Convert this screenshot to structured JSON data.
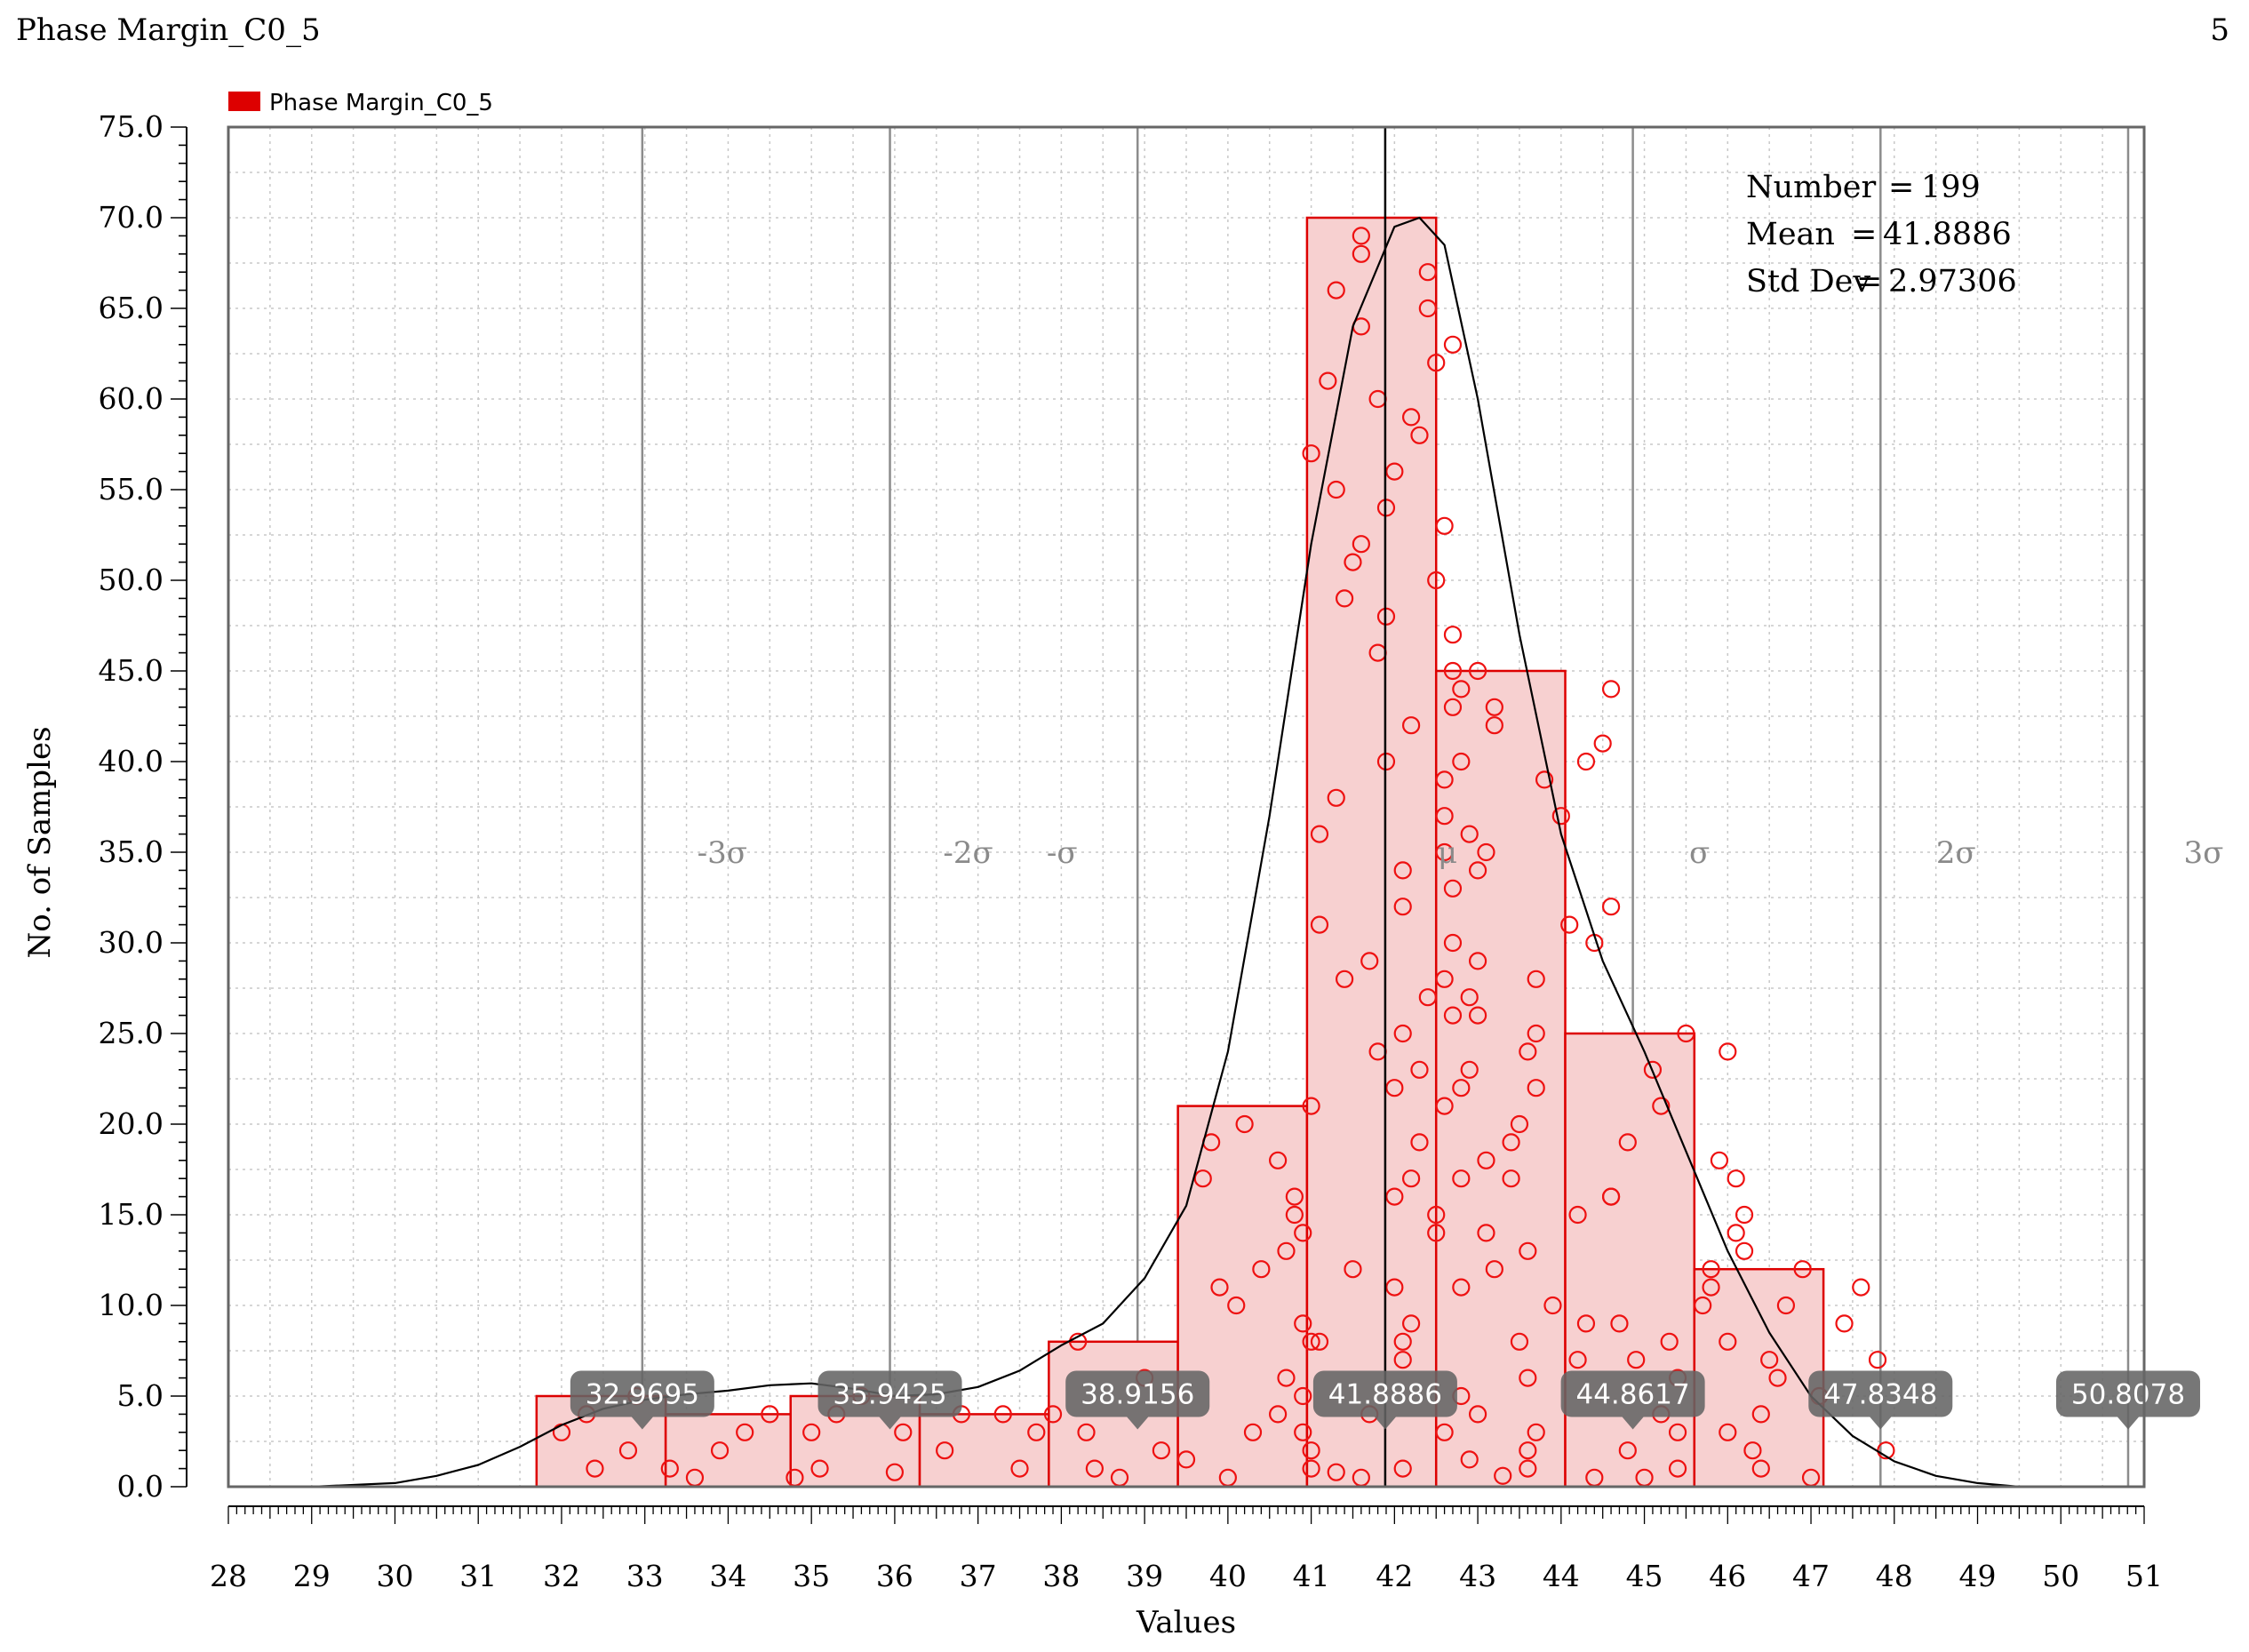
{
  "window": {
    "title": "Phase Margin_C0_5",
    "page_number": "5"
  },
  "chart_data": {
    "type": "bar",
    "title": "",
    "xlabel": "Values",
    "ylabel": "No. of Samples",
    "xlim": [
      28,
      51
    ],
    "ylim": [
      0,
      75
    ],
    "x_ticks": [
      "28",
      "29",
      "30",
      "31",
      "32",
      "33",
      "34",
      "35",
      "36",
      "37",
      "38",
      "39",
      "40",
      "41",
      "42",
      "43",
      "44",
      "45",
      "46",
      "47",
      "48",
      "49",
      "50",
      "51"
    ],
    "y_ticks": [
      "0.0",
      "5.0",
      "10.0",
      "15.0",
      "20.0",
      "25.0",
      "30.0",
      "35.0",
      "40.0",
      "45.0",
      "50.0",
      "55.0",
      "60.0",
      "65.0",
      "70.0",
      "75.0"
    ],
    "grid": true,
    "legend": {
      "position": "top-left",
      "entries": [
        {
          "name": "Phase Margin_C0_5",
          "color": "#dd0000"
        }
      ]
    },
    "series": [
      {
        "name": "Phase Margin_C0_5",
        "bins": [
          {
            "start": 31.7,
            "end": 33.25,
            "count": 5
          },
          {
            "start": 33.25,
            "end": 34.75,
            "count": 4
          },
          {
            "start": 34.75,
            "end": 36.3,
            "count": 5
          },
          {
            "start": 36.3,
            "end": 37.85,
            "count": 4
          },
          {
            "start": 37.85,
            "end": 39.4,
            "count": 8
          },
          {
            "start": 39.4,
            "end": 40.95,
            "count": 21
          },
          {
            "start": 40.95,
            "end": 42.5,
            "count": 70
          },
          {
            "start": 42.5,
            "end": 44.05,
            "count": 45
          },
          {
            "start": 44.05,
            "end": 45.6,
            "count": 25
          },
          {
            "start": 45.6,
            "end": 47.15,
            "count": 12
          }
        ]
      }
    ],
    "density_curve": {
      "x": [
        28,
        29,
        30,
        30.5,
        31,
        31.5,
        32,
        32.5,
        33,
        33.5,
        34,
        34.5,
        35,
        35.5,
        36,
        36.5,
        37,
        37.5,
        38,
        38.5,
        39,
        39.5,
        40,
        40.5,
        41,
        41.5,
        42,
        42.3,
        42.6,
        43,
        43.5,
        44,
        44.5,
        45,
        45.5,
        46,
        46.5,
        47,
        47.5,
        48,
        48.5,
        49,
        49.5,
        50,
        51
      ],
      "y": [
        0,
        0,
        0.2,
        0.6,
        1.2,
        2.2,
        3.4,
        4.3,
        4.8,
        5.1,
        5.3,
        5.6,
        5.7,
        5.4,
        5.0,
        5.1,
        5.5,
        6.4,
        7.8,
        9.0,
        11.5,
        15.5,
        24,
        37,
        52,
        64,
        69.5,
        70,
        68.5,
        60,
        47,
        36,
        29,
        24,
        18.5,
        13,
        8.5,
        5,
        2.8,
        1.4,
        0.6,
        0.2,
        0,
        0,
        0
      ]
    },
    "statistics": {
      "number": "199",
      "mean": "41.8886",
      "std_dev": "2.97306"
    },
    "stats_labels": {
      "number": "Number",
      "mean": "Mean",
      "std_dev": "Std Dev"
    },
    "sigma_markers": [
      {
        "label": "-3σ",
        "value": "32.9695"
      },
      {
        "label": "-2σ",
        "value": "35.9425"
      },
      {
        "label": "-σ",
        "value": "38.9156"
      },
      {
        "label": "μ",
        "value": "41.8886"
      },
      {
        "label": "σ",
        "value": "44.8617"
      },
      {
        "label": "2σ",
        "value": "47.8348"
      },
      {
        "label": "3σ",
        "value": "50.8078"
      }
    ],
    "sample_points": [
      [
        32.0,
        3
      ],
      [
        32.3,
        4
      ],
      [
        32.4,
        1
      ],
      [
        32.8,
        2
      ],
      [
        33.3,
        1
      ],
      [
        33.9,
        2
      ],
      [
        34.2,
        3
      ],
      [
        34.5,
        4
      ],
      [
        35.0,
        3
      ],
      [
        35.1,
        1
      ],
      [
        35.3,
        4
      ],
      [
        35.6,
        5
      ],
      [
        36.1,
        3
      ],
      [
        36.6,
        2
      ],
      [
        36.8,
        4
      ],
      [
        37.5,
        1
      ],
      [
        37.7,
        3
      ],
      [
        37.9,
        4
      ],
      [
        38.2,
        8
      ],
      [
        38.3,
        3
      ],
      [
        38.4,
        1
      ],
      [
        39.2,
        2
      ],
      [
        39.7,
        17
      ],
      [
        39.8,
        19
      ],
      [
        39.9,
        11
      ],
      [
        40.1,
        10
      ],
      [
        40.2,
        20
      ],
      [
        40.4,
        12
      ],
      [
        40.6,
        4
      ],
      [
        40.6,
        18
      ],
      [
        40.7,
        13
      ],
      [
        40.7,
        6
      ],
      [
        40.8,
        16
      ],
      [
        40.8,
        15
      ],
      [
        40.9,
        5
      ],
      [
        40.9,
        3
      ],
      [
        40.9,
        9
      ],
      [
        40.9,
        14
      ],
      [
        41.0,
        21
      ],
      [
        41.0,
        1
      ],
      [
        41.0,
        2
      ],
      [
        41.0,
        8
      ],
      [
        41.1,
        8
      ],
      [
        41.0,
        57
      ],
      [
        41.1,
        36
      ],
      [
        41.1,
        31
      ],
      [
        41.2,
        61
      ],
      [
        41.3,
        55
      ],
      [
        41.3,
        66
      ],
      [
        41.3,
        38
      ],
      [
        41.4,
        28
      ],
      [
        41.4,
        49
      ],
      [
        41.5,
        51
      ],
      [
        41.5,
        12
      ],
      [
        41.6,
        64
      ],
      [
        41.6,
        68
      ],
      [
        41.6,
        52
      ],
      [
        41.6,
        69
      ],
      [
        41.7,
        29
      ],
      [
        41.7,
        4
      ],
      [
        41.8,
        60
      ],
      [
        41.8,
        24
      ],
      [
        41.8,
        46
      ],
      [
        41.9,
        54
      ],
      [
        41.9,
        40
      ],
      [
        41.9,
        48
      ],
      [
        42.0,
        56
      ],
      [
        42.0,
        22
      ],
      [
        42.0,
        16
      ],
      [
        42.0,
        11
      ],
      [
        42.1,
        25
      ],
      [
        42.1,
        34
      ],
      [
        42.1,
        32
      ],
      [
        42.1,
        8
      ],
      [
        42.2,
        59
      ],
      [
        42.2,
        42
      ],
      [
        42.2,
        17
      ],
      [
        42.2,
        9
      ],
      [
        42.1,
        7
      ],
      [
        42.1,
        1
      ],
      [
        42.3,
        23
      ],
      [
        42.3,
        19
      ],
      [
        42.3,
        58
      ],
      [
        42.4,
        65
      ],
      [
        42.4,
        67
      ],
      [
        42.4,
        27
      ],
      [
        42.5,
        62
      ],
      [
        42.5,
        50
      ],
      [
        42.5,
        14
      ],
      [
        42.5,
        15
      ],
      [
        42.6,
        53
      ],
      [
        42.6,
        39
      ],
      [
        42.6,
        37
      ],
      [
        42.6,
        35
      ],
      [
        42.6,
        28
      ],
      [
        42.6,
        21
      ],
      [
        42.6,
        3
      ],
      [
        42.7,
        63
      ],
      [
        42.7,
        47
      ],
      [
        42.7,
        45
      ],
      [
        42.7,
        43
      ],
      [
        42.7,
        33
      ],
      [
        42.7,
        30
      ],
      [
        42.7,
        26
      ],
      [
        42.8,
        44
      ],
      [
        42.8,
        40
      ],
      [
        42.8,
        22
      ],
      [
        42.8,
        17
      ],
      [
        42.8,
        11
      ],
      [
        42.8,
        5
      ],
      [
        42.9,
        36
      ],
      [
        42.9,
        27
      ],
      [
        42.9,
        23
      ],
      [
        43.0,
        45
      ],
      [
        43.0,
        34
      ],
      [
        43.0,
        29
      ],
      [
        43.0,
        26
      ],
      [
        43.0,
        4
      ],
      [
        43.1,
        35
      ],
      [
        43.1,
        18
      ],
      [
        43.1,
        14
      ],
      [
        43.2,
        43
      ],
      [
        43.2,
        42
      ],
      [
        43.2,
        12
      ],
      [
        43.4,
        19
      ],
      [
        43.4,
        17
      ],
      [
        43.5,
        20
      ],
      [
        43.5,
        8
      ],
      [
        43.6,
        1
      ],
      [
        43.6,
        6
      ],
      [
        43.6,
        13
      ],
      [
        43.6,
        24
      ],
      [
        43.7,
        28
      ],
      [
        43.7,
        22
      ],
      [
        43.7,
        25
      ],
      [
        43.6,
        2
      ],
      [
        43.7,
        3
      ],
      [
        43.8,
        39
      ],
      [
        44.0,
        37
      ],
      [
        44.1,
        31
      ],
      [
        44.2,
        15
      ],
      [
        44.2,
        7
      ],
      [
        44.3,
        9
      ],
      [
        44.3,
        40
      ],
      [
        44.4,
        30
      ],
      [
        44.5,
        41
      ],
      [
        44.6,
        16
      ],
      [
        44.6,
        44
      ],
      [
        44.6,
        32
      ],
      [
        44.6,
        16
      ],
      [
        44.7,
        9
      ],
      [
        44.8,
        19
      ],
      [
        44.9,
        7
      ],
      [
        45.1,
        23
      ],
      [
        45.2,
        4
      ],
      [
        45.2,
        21
      ],
      [
        45.3,
        8
      ],
      [
        45.4,
        3
      ],
      [
        45.4,
        6
      ],
      [
        45.4,
        1
      ],
      [
        45.5,
        25
      ],
      [
        45.7,
        10
      ],
      [
        45.8,
        12
      ],
      [
        45.8,
        11
      ],
      [
        45.9,
        18
      ],
      [
        46.0,
        24
      ],
      [
        46.0,
        8
      ],
      [
        46.0,
        3
      ],
      [
        46.1,
        17
      ],
      [
        46.1,
        14
      ],
      [
        46.2,
        15
      ],
      [
        46.2,
        13
      ],
      [
        46.3,
        2
      ],
      [
        46.4,
        1
      ],
      [
        46.4,
        4
      ],
      [
        46.6,
        6
      ],
      [
        46.7,
        10
      ],
      [
        46.9,
        12
      ],
      [
        47.1,
        5
      ],
      [
        47.4,
        9
      ],
      [
        47.6,
        11
      ],
      [
        47.8,
        7
      ],
      [
        47.9,
        2
      ],
      [
        32.9,
        5
      ],
      [
        37.3,
        4
      ],
      [
        39.0,
        6
      ],
      [
        40.3,
        3
      ],
      [
        43.9,
        10
      ],
      [
        44.8,
        2
      ],
      [
        46.5,
        7
      ],
      [
        41.6,
        0.5
      ],
      [
        42.9,
        1.5
      ],
      [
        45.0,
        0.5
      ],
      [
        36.0,
        0.8
      ],
      [
        39.5,
        1.5
      ],
      [
        34.8,
        0.5
      ],
      [
        47.0,
        0.5
      ],
      [
        44.4,
        0.5
      ],
      [
        40.0,
        0.5
      ],
      [
        33.6,
        0.5
      ],
      [
        38.7,
        0.5
      ],
      [
        41.3,
        0.8
      ],
      [
        43.3,
        0.6
      ]
    ]
  }
}
